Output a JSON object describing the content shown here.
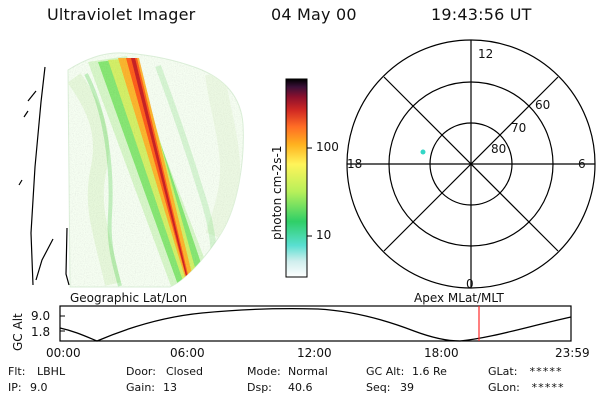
{
  "header": {
    "title": "Ultraviolet Imager",
    "date": "04 May 00",
    "time": "19:43:56 UT"
  },
  "left_panel": {
    "label": "Geographic Lat/Lon"
  },
  "colorbar": {
    "unit_label": "photon cm-2s-1",
    "ticks": [
      "100",
      "10"
    ]
  },
  "polar_plot": {
    "label": "Apex MLat/MLT",
    "mlt_labels": {
      "top": "12",
      "left": "18",
      "right": "6",
      "bottom": "0"
    },
    "lat_labels": [
      "60",
      "70",
      "80"
    ]
  },
  "altitude_strip": {
    "y_label": "GC Alt",
    "y_ticks": [
      "9.0",
      "1.8"
    ],
    "x_ticks": [
      "00:00",
      "06:00",
      "12:00",
      "18:00",
      "23:59"
    ]
  },
  "footer": {
    "row1": [
      {
        "label": "Flt:",
        "value": "LBHL"
      },
      {
        "label": "Door:",
        "value": "Closed"
      },
      {
        "label": "Mode:",
        "value": "Normal"
      },
      {
        "label": "GC Alt:",
        "value": "1.6 Re"
      },
      {
        "label": "GLat:",
        "value": "*****"
      }
    ],
    "row2": [
      {
        "label": "IP:",
        "value": "9.0"
      },
      {
        "label": "Gain:",
        "value": "13"
      },
      {
        "label": "Dsp:",
        "value": "40.6"
      },
      {
        "label": "Seq:",
        "value": "39"
      },
      {
        "label": "GLon:",
        "value": "*****"
      }
    ]
  },
  "colors": {
    "text": "#111111",
    "line": "#000000",
    "marker": "#ff2a2a",
    "spot": "#32d6c6"
  }
}
